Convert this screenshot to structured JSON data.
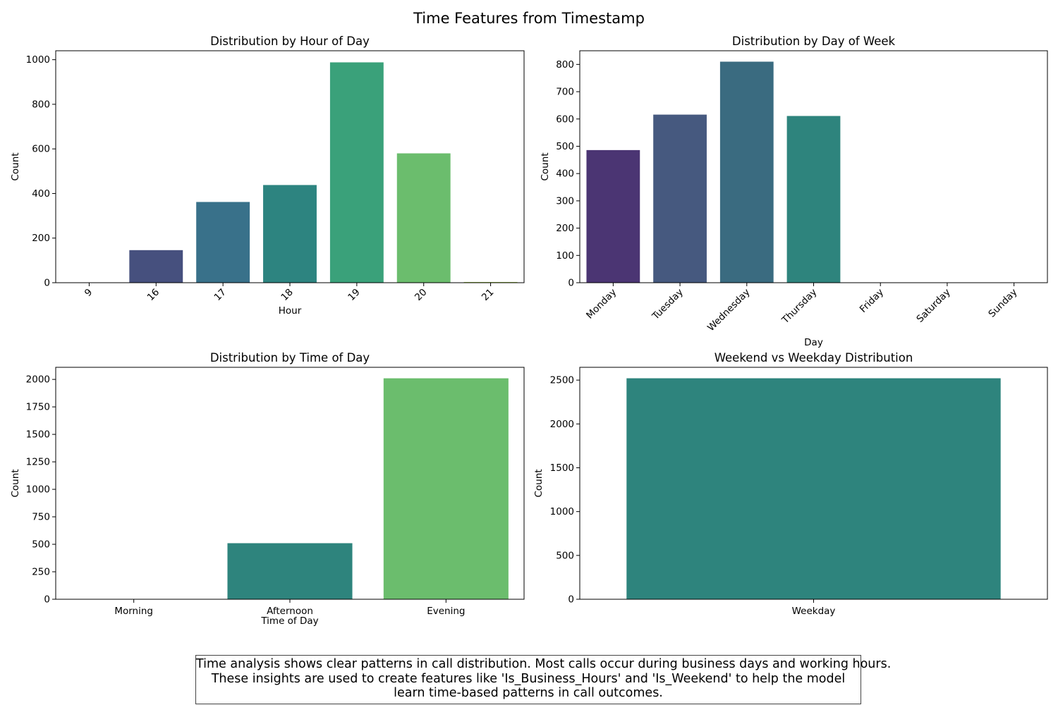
{
  "figure": {
    "title": "Time Features from Timestamp",
    "caption_lines": [
      "Time analysis shows clear patterns in call distribution. Most calls occur during business days and working hours.",
      "These insights are used to create features like 'Is_Business_Hours' and 'Is_Weekend' to help the model",
      "learn time-based patterns in call outcomes."
    ]
  },
  "chart_data": [
    {
      "type": "bar",
      "title": "Distribution by Hour of Day",
      "xlabel": "Hour",
      "ylabel": "Count",
      "categories": [
        "9",
        "16",
        "17",
        "18",
        "19",
        "20",
        "21"
      ],
      "values": [
        1,
        146,
        362,
        438,
        988,
        580,
        3
      ],
      "colors": [
        "#472d7b",
        "#46507e",
        "#39718a",
        "#2d8480",
        "#3aa17a",
        "#6bbd6d",
        "#9cc93e"
      ],
      "ylim": [
        0,
        1040
      ],
      "yticks": [
        0,
        200,
        400,
        600,
        800,
        1000
      ],
      "xtick_rotation": 45,
      "grid": false
    },
    {
      "type": "bar",
      "title": "Distribution by Day of Week",
      "xlabel": "Day",
      "ylabel": "Count",
      "categories": [
        "Monday",
        "Tuesday",
        "Wednesday",
        "Thursday",
        "Friday",
        "Saturday",
        "Sunday"
      ],
      "values": [
        486,
        616,
        810,
        611,
        0,
        0,
        0
      ],
      "colors": [
        "#4b3573",
        "#46597f",
        "#3a6b80",
        "#2e847d",
        "#3aa17a",
        "#6bbd6d",
        "#9cc93e"
      ],
      "ylim": [
        0,
        850
      ],
      "yticks": [
        0,
        100,
        200,
        300,
        400,
        500,
        600,
        700,
        800
      ],
      "xtick_rotation": 45,
      "grid": false
    },
    {
      "type": "bar",
      "title": "Distribution by Time of Day",
      "xlabel": "Time of Day",
      "ylabel": "Count",
      "categories": [
        "Morning",
        "Afternoon",
        "Evening"
      ],
      "values": [
        1,
        510,
        2010
      ],
      "colors": [
        "#453781",
        "#2e847d",
        "#6bbd6d"
      ],
      "ylim": [
        0,
        2110
      ],
      "yticks": [
        0,
        250,
        500,
        750,
        1000,
        1250,
        1500,
        1750,
        2000
      ],
      "ytick_labels": [
        "0",
        "250",
        "500",
        "750",
        "1000",
        "1250",
        "1500",
        "1750",
        "2000"
      ],
      "xtick_rotation": 0,
      "grid": false
    },
    {
      "type": "bar",
      "title": "Weekend vs Weekday Distribution",
      "xlabel": "",
      "ylabel": "Count",
      "categories": [
        "Weekday"
      ],
      "values": [
        2521
      ],
      "colors": [
        "#2e847d"
      ],
      "ylim": [
        0,
        2646
      ],
      "yticks": [
        0,
        500,
        1000,
        1500,
        2000,
        2500
      ],
      "xtick_rotation": 0,
      "grid": false
    }
  ]
}
